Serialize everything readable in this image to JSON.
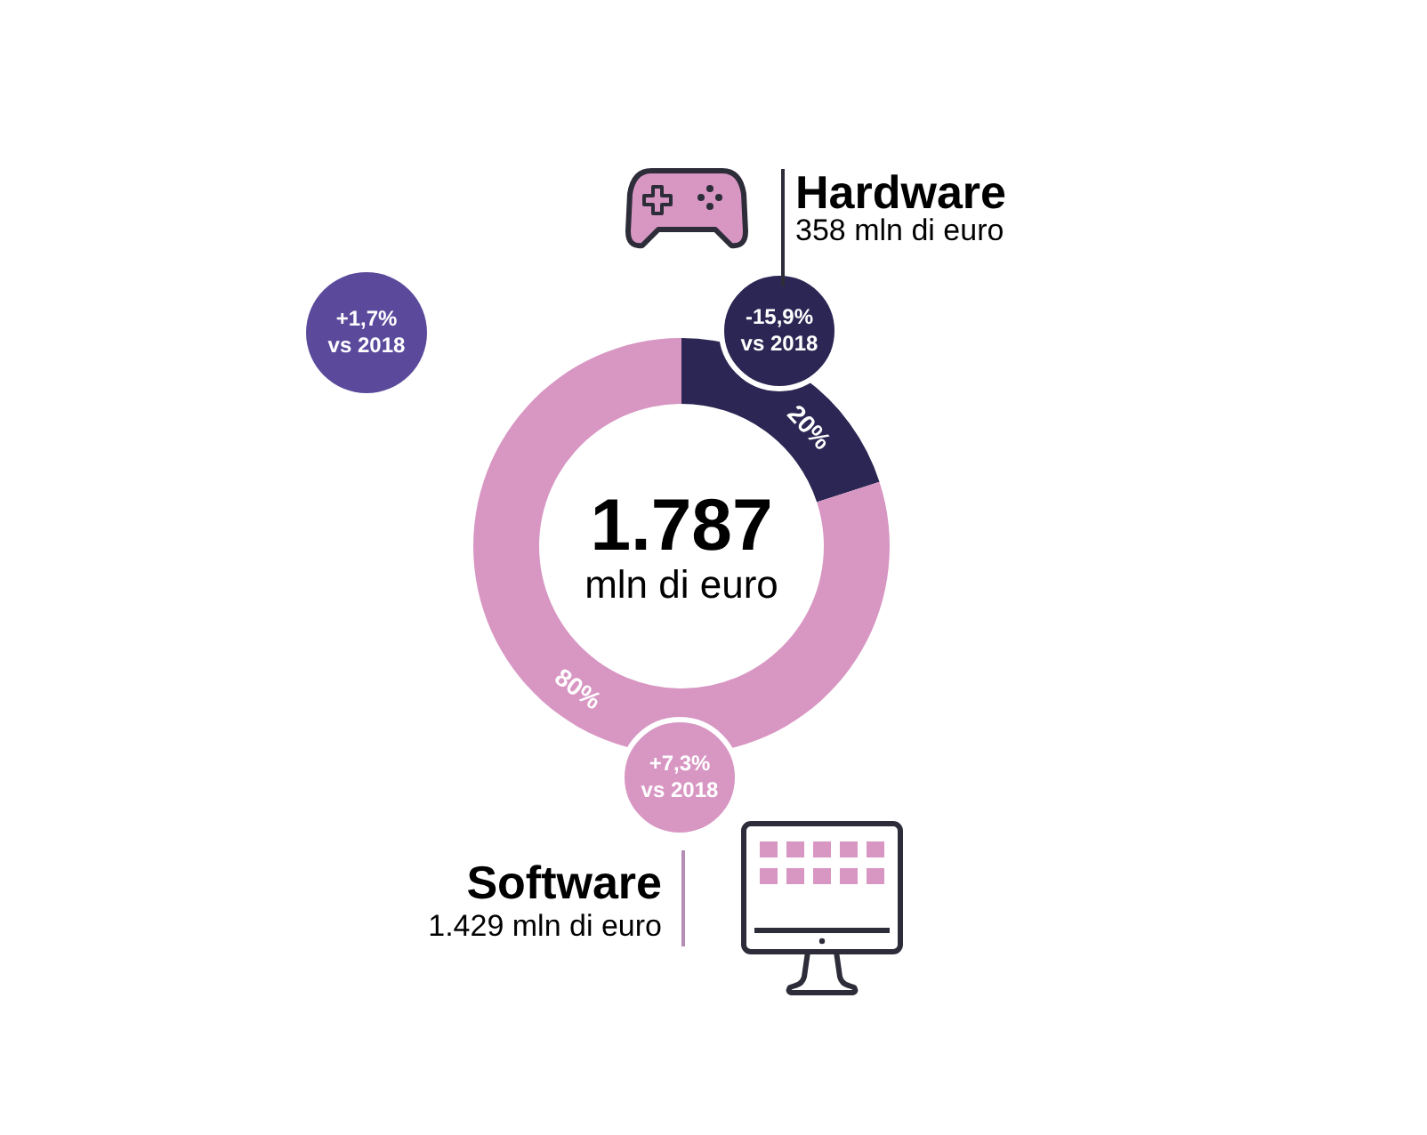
{
  "chart_data": {
    "type": "donut",
    "categories": [
      "Hardware",
      "Software"
    ],
    "values": [
      20,
      80
    ],
    "colors": [
      "#2b2653",
      "#d896c3"
    ],
    "value_labels": [
      "20%",
      "80%"
    ],
    "annotations": [
      "1.787",
      "mln di euro",
      "+1,7%\nvs 2018",
      "-15,9%\nvs 2018",
      "+7,3%\nvs 2018",
      "358 mln di euro",
      "1.429 mln di euro"
    ]
  }
}
